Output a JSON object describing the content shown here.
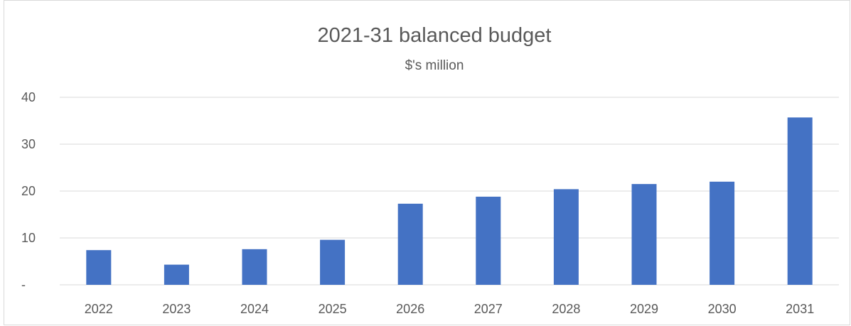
{
  "chart_data": {
    "type": "bar",
    "title": "2021-31 balanced budget",
    "subtitle": "$'s million",
    "categories": [
      "2022",
      "2023",
      "2024",
      "2025",
      "2026",
      "2027",
      "2028",
      "2029",
      "2030",
      "2031"
    ],
    "values": [
      7.4,
      4.3,
      7.6,
      9.6,
      17.3,
      18.8,
      20.4,
      21.5,
      22.0,
      35.7
    ],
    "ylim": [
      0,
      40
    ],
    "yticks": [
      0,
      10,
      20,
      30,
      40
    ],
    "ytick_labels": [
      "-",
      "10",
      "20",
      "30",
      "40"
    ],
    "grid": true,
    "bar_color": "#4472c4",
    "grid_color": "#d9d9d9"
  }
}
